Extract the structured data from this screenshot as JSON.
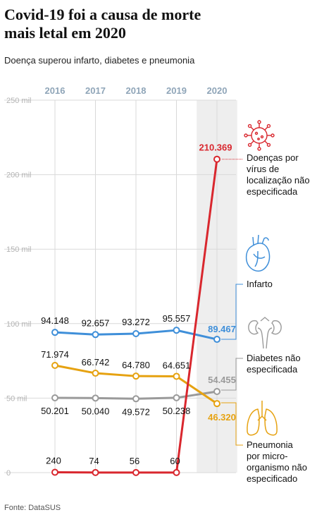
{
  "title": "Covid-19 foi a causa de morte mais letal em 2020",
  "subtitle": "Doença superou infarto, diabetes e pneumonia",
  "source": "Fonte: DataSUS",
  "colors": {
    "virus": "#d9272e",
    "infarto": "#3f8fd9",
    "diabetes": "#9a9a9a",
    "pneumonia": "#e6a211",
    "highlight_band": "#eeeeee"
  },
  "chart_data": {
    "type": "line",
    "categories": [
      "2016",
      "2017",
      "2018",
      "2019",
      "2020"
    ],
    "ylim": [
      0,
      250000
    ],
    "yticks": [
      0,
      50000,
      100000,
      150000,
      200000,
      250000
    ],
    "ytick_labels": [
      "0",
      "50 mil",
      "100 mil",
      "150 mil",
      "200 mil",
      "250 mil"
    ],
    "highlight_category": "2020",
    "series": [
      {
        "key": "virus",
        "name": "Doenças por vírus de localização não especificada",
        "values": [
          240,
          74,
          56,
          60,
          210369
        ],
        "labels": [
          "240",
          "74",
          "56",
          "60",
          "210.369"
        ],
        "icon": "virus-icon"
      },
      {
        "key": "infarto",
        "name": "Infarto",
        "values": [
          94148,
          92657,
          93272,
          95557,
          89467
        ],
        "labels": [
          "94.148",
          "92.657",
          "93.272",
          "95.557",
          "89.467"
        ],
        "icon": "heart-icon"
      },
      {
        "key": "diabetes",
        "name": "Diabetes não especificada",
        "values": [
          50201,
          50040,
          49572,
          50238,
          54455
        ],
        "labels": [
          "50.201",
          "50.040",
          "49.572",
          "50.238",
          "54.455"
        ],
        "icon": "kidneys-icon"
      },
      {
        "key": "pneumonia",
        "name": "Pneumonia por micro-organismo não especificado",
        "values": [
          71974,
          66742,
          64780,
          64651,
          46320
        ],
        "labels": [
          "71.974",
          "66.742",
          "64.780",
          "64.651",
          "46.320"
        ],
        "icon": "lungs-icon"
      }
    ]
  }
}
